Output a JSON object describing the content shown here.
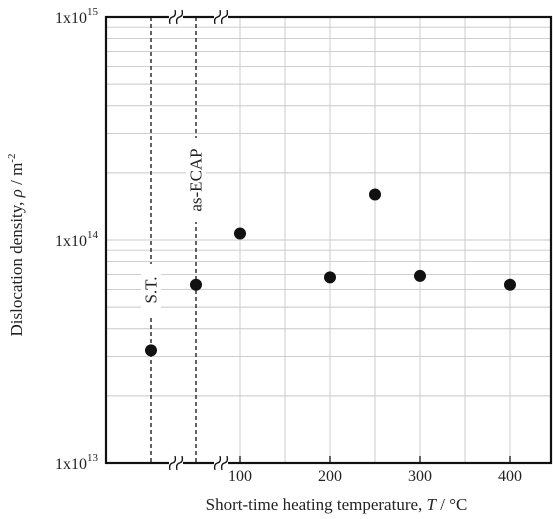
{
  "chart_data": {
    "type": "scatter",
    "title": "",
    "xlabel": "Short-time heating temperature, T / °C",
    "xlabel_parts": [
      "Short-time heating temperature, ",
      "T",
      " / °C"
    ],
    "ylabel": "Dislocation density, ρ / m⁻²",
    "ylabel_parts": [
      "Dislocation density, ",
      "ρ",
      " / m",
      "-2"
    ],
    "xlim": [
      50,
      450
    ],
    "x_ticks": [
      100,
      200,
      300,
      400
    ],
    "y_scale": "log",
    "ylim": [
      10000000000000.0,
      1000000000000000.0
    ],
    "y_tick_labels": [
      {
        "value": 10000000000000.0,
        "mantissa": "1x10",
        "exp": "13"
      },
      {
        "value": 100000000000000.0,
        "mantissa": "1x10",
        "exp": "14"
      },
      {
        "value": 1000000000000000.0,
        "mantissa": "1x10",
        "exp": "15"
      }
    ],
    "grid": true,
    "axis_break": "between reference columns and T = 100 °C",
    "reference_points": [
      {
        "label": "S.T.",
        "y": 32000000000000.0
      },
      {
        "label": "as-ECAP",
        "y": 63000000000000.0
      }
    ],
    "points": [
      {
        "x": 100,
        "y": 107000000000000.0
      },
      {
        "x": 200,
        "y": 68000000000000.0
      },
      {
        "x": 250,
        "y": 160000000000000.0
      },
      {
        "x": 300,
        "y": 69000000000000.0
      },
      {
        "x": 400,
        "y": 63000000000000.0
      }
    ],
    "marker_color": "#111111",
    "grid_color": "#c8c8c8"
  }
}
